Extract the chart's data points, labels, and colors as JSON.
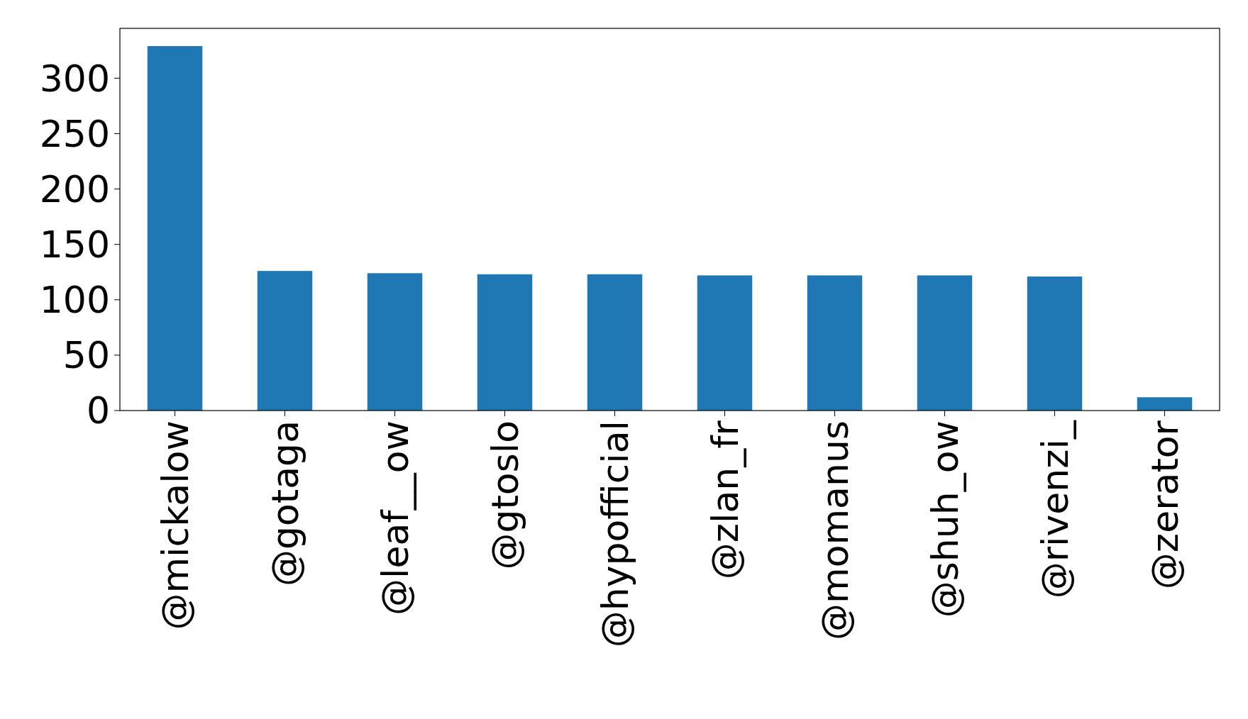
{
  "chart_data": {
    "type": "bar",
    "categories": [
      "@mickalow",
      "@gotaga",
      "@leaf__ow",
      "@gtoslo",
      "@hypofficial",
      "@zlan_fr",
      "@momanus",
      "@shuh_ow",
      "@rivenzi_",
      "@zerator"
    ],
    "values": [
      329,
      126,
      124,
      123,
      123,
      122,
      122,
      122,
      121,
      12
    ],
    "color": "#1f77b4",
    "ylim": [
      0,
      345
    ],
    "yticks": [
      0,
      50,
      100,
      150,
      200,
      250,
      300
    ],
    "grid": false
  }
}
